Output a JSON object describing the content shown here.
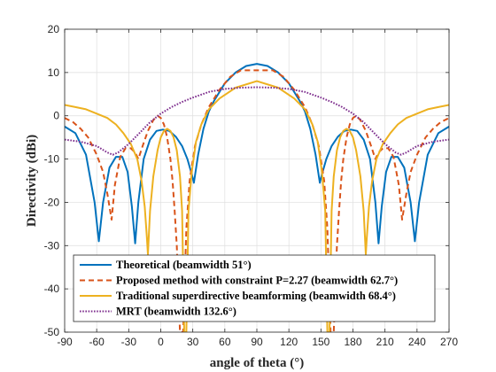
{
  "chart_data": {
    "type": "line",
    "xlabel": "angle of theta (°)",
    "ylabel": "Directivity (dBi)",
    "xlim": [
      -90,
      270
    ],
    "ylim": [
      -50,
      20
    ],
    "xticks": [
      -90,
      -60,
      -30,
      0,
      30,
      60,
      90,
      120,
      150,
      180,
      210,
      240,
      270
    ],
    "yticks": [
      -50,
      -40,
      -30,
      -20,
      -10,
      0,
      10,
      20
    ],
    "grid": true,
    "legend_position": "bottom",
    "series": [
      {
        "name": "Theoretical (beamwidth 51°)",
        "color": "#0072BD",
        "style": "solid",
        "points": [
          [
            -90,
            -2.5
          ],
          [
            -80,
            -4
          ],
          [
            -70,
            -9
          ],
          [
            -62,
            -20
          ],
          [
            -58,
            -29
          ],
          [
            -54,
            -20
          ],
          [
            -48,
            -12
          ],
          [
            -42,
            -9.5
          ],
          [
            -36,
            -9.5
          ],
          [
            -31,
            -13
          ],
          [
            -27,
            -21
          ],
          [
            -24,
            -29.5
          ],
          [
            -21,
            -20
          ],
          [
            -16,
            -10
          ],
          [
            -10,
            -5.5
          ],
          [
            -4,
            -3.5
          ],
          [
            2,
            -3.2
          ],
          [
            8,
            -3.5
          ],
          [
            14,
            -4.8
          ],
          [
            20,
            -7
          ],
          [
            25,
            -10
          ],
          [
            29,
            -13.5
          ],
          [
            31,
            -15.5
          ],
          [
            35,
            -9
          ],
          [
            40,
            -3
          ],
          [
            45,
            1
          ],
          [
            50,
            3.5
          ],
          [
            60,
            7.5
          ],
          [
            70,
            10
          ],
          [
            80,
            11.5
          ],
          [
            90,
            12
          ],
          [
            100,
            11.5
          ],
          [
            110,
            10
          ],
          [
            120,
            7.5
          ],
          [
            130,
            3.5
          ],
          [
            135,
            1
          ],
          [
            140,
            -3
          ],
          [
            145,
            -9
          ],
          [
            149,
            -15.5
          ],
          [
            151,
            -13.5
          ],
          [
            155,
            -10
          ],
          [
            160,
            -7
          ],
          [
            166,
            -4.8
          ],
          [
            172,
            -3.5
          ],
          [
            178,
            -3.2
          ],
          [
            184,
            -3.5
          ],
          [
            190,
            -5.5
          ],
          [
            196,
            -10
          ],
          [
            201,
            -20
          ],
          [
            204,
            -29.5
          ],
          [
            207,
            -21
          ],
          [
            211,
            -13
          ],
          [
            216,
            -9.5
          ],
          [
            222,
            -9.5
          ],
          [
            228,
            -12
          ],
          [
            234,
            -20
          ],
          [
            238,
            -29
          ],
          [
            242,
            -20
          ],
          [
            250,
            -9
          ],
          [
            260,
            -4
          ],
          [
            270,
            -2.5
          ]
        ]
      },
      {
        "name": "Proposed method with constraint P=2.27 (beamwidth 62.7°)",
        "color": "#D95319",
        "style": "dashed",
        "points": [
          [
            -90,
            -0.5
          ],
          [
            -82,
            -1.5
          ],
          [
            -75,
            -3
          ],
          [
            -68,
            -5
          ],
          [
            -60,
            -9
          ],
          [
            -54,
            -13
          ],
          [
            -50,
            -18
          ],
          [
            -46,
            -24
          ],
          [
            -43,
            -16
          ],
          [
            -38,
            -9.5
          ],
          [
            -33,
            -7.5
          ],
          [
            -28,
            -7.5
          ],
          [
            -24,
            -8.5
          ],
          [
            -21,
            -10
          ],
          [
            -17,
            -7
          ],
          [
            -12,
            -3.5
          ],
          [
            -7,
            -1
          ],
          [
            -3,
            0
          ],
          [
            0,
            -0.5
          ],
          [
            3,
            -2
          ],
          [
            6,
            -5
          ],
          [
            9,
            -10
          ],
          [
            11,
            -15
          ],
          [
            13,
            -22
          ],
          [
            15,
            -30
          ],
          [
            18,
            -50
          ],
          [
            21,
            -50
          ],
          [
            24,
            -26
          ],
          [
            27,
            -15
          ],
          [
            32,
            -7
          ],
          [
            38,
            -2
          ],
          [
            45,
            2
          ],
          [
            55,
            6
          ],
          [
            65,
            9
          ],
          [
            75,
            10.5
          ],
          [
            90,
            10.5
          ],
          [
            105,
            10.5
          ],
          [
            115,
            9
          ],
          [
            125,
            6
          ],
          [
            135,
            2
          ],
          [
            142,
            -2
          ],
          [
            148,
            -7
          ],
          [
            153,
            -15
          ],
          [
            156,
            -26
          ],
          [
            159,
            -50
          ],
          [
            162,
            -50
          ],
          [
            165,
            -30
          ],
          [
            167,
            -22
          ],
          [
            169,
            -15
          ],
          [
            171,
            -10
          ],
          [
            174,
            -5
          ],
          [
            177,
            -2
          ],
          [
            180,
            -0.5
          ],
          [
            183,
            0
          ],
          [
            187,
            -1
          ],
          [
            192,
            -3.5
          ],
          [
            197,
            -7
          ],
          [
            201,
            -10
          ],
          [
            204,
            -8.5
          ],
          [
            208,
            -7.5
          ],
          [
            213,
            -7.5
          ],
          [
            218,
            -9.5
          ],
          [
            223,
            -16
          ],
          [
            226,
            -24
          ],
          [
            230,
            -18
          ],
          [
            234,
            -13
          ],
          [
            240,
            -9
          ],
          [
            248,
            -5
          ],
          [
            255,
            -3
          ],
          [
            262,
            -1.5
          ],
          [
            270,
            -0.5
          ]
        ]
      },
      {
        "name": "Traditional superdirective beamforming (beamwidth 68.4°)",
        "color": "#EDB120",
        "style": "solid",
        "points": [
          [
            -90,
            2.5
          ],
          [
            -80,
            2
          ],
          [
            -70,
            1.5
          ],
          [
            -60,
            0.5
          ],
          [
            -50,
            -0.5
          ],
          [
            -42,
            -2
          ],
          [
            -35,
            -4
          ],
          [
            -28,
            -6.5
          ],
          [
            -22,
            -10
          ],
          [
            -18,
            -15
          ],
          [
            -15,
            -21
          ],
          [
            -13,
            -28
          ],
          [
            -12,
            -32
          ],
          [
            -10,
            -22
          ],
          [
            -7,
            -14
          ],
          [
            -3,
            -8
          ],
          [
            0,
            -5
          ],
          [
            3,
            -3.5
          ],
          [
            6,
            -3
          ],
          [
            9,
            -3.5
          ],
          [
            12,
            -5
          ],
          [
            15,
            -8
          ],
          [
            18,
            -14
          ],
          [
            20,
            -22
          ],
          [
            22,
            -50
          ],
          [
            24,
            -50
          ],
          [
            26,
            -22
          ],
          [
            29,
            -13
          ],
          [
            33,
            -6
          ],
          [
            38,
            -2
          ],
          [
            45,
            1.5
          ],
          [
            55,
            4
          ],
          [
            70,
            6.5
          ],
          [
            90,
            8
          ],
          [
            110,
            6.5
          ],
          [
            125,
            4
          ],
          [
            135,
            1.5
          ],
          [
            142,
            -2
          ],
          [
            147,
            -6
          ],
          [
            151,
            -13
          ],
          [
            154,
            -22
          ],
          [
            156,
            -50
          ],
          [
            158,
            -50
          ],
          [
            160,
            -22
          ],
          [
            162,
            -14
          ],
          [
            165,
            -8
          ],
          [
            168,
            -5
          ],
          [
            171,
            -3.5
          ],
          [
            174,
            -3
          ],
          [
            177,
            -3.5
          ],
          [
            180,
            -5
          ],
          [
            183,
            -8
          ],
          [
            187,
            -14
          ],
          [
            190,
            -22
          ],
          [
            192,
            -32
          ],
          [
            193,
            -28
          ],
          [
            195,
            -21
          ],
          [
            198,
            -15
          ],
          [
            202,
            -10
          ],
          [
            208,
            -6.5
          ],
          [
            215,
            -4
          ],
          [
            222,
            -2
          ],
          [
            230,
            -0.5
          ],
          [
            240,
            0.5
          ],
          [
            250,
            1.5
          ],
          [
            260,
            2
          ],
          [
            270,
            2.5
          ]
        ]
      },
      {
        "name": "MRT (beamwidth 132.6°)",
        "color": "#7E2F8E",
        "style": "dotted",
        "points": [
          [
            -90,
            -5.5
          ],
          [
            -75,
            -6
          ],
          [
            -60,
            -7
          ],
          [
            -50,
            -8.5
          ],
          [
            -45,
            -9
          ],
          [
            -40,
            -8.5
          ],
          [
            -30,
            -6.5
          ],
          [
            -20,
            -4
          ],
          [
            -10,
            -1.5
          ],
          [
            0,
            0.5
          ],
          [
            10,
            2
          ],
          [
            20,
            3.2
          ],
          [
            30,
            4.2
          ],
          [
            45,
            5.5
          ],
          [
            60,
            6.2
          ],
          [
            75,
            6.5
          ],
          [
            90,
            6.6
          ],
          [
            105,
            6.5
          ],
          [
            120,
            6.2
          ],
          [
            135,
            5.5
          ],
          [
            150,
            4.2
          ],
          [
            160,
            3.2
          ],
          [
            170,
            2
          ],
          [
            180,
            0.5
          ],
          [
            190,
            -1.5
          ],
          [
            200,
            -4
          ],
          [
            210,
            -6.5
          ],
          [
            220,
            -8.5
          ],
          [
            225,
            -9
          ],
          [
            230,
            -8.5
          ],
          [
            240,
            -7
          ],
          [
            255,
            -6
          ],
          [
            270,
            -5.5
          ]
        ]
      }
    ]
  }
}
